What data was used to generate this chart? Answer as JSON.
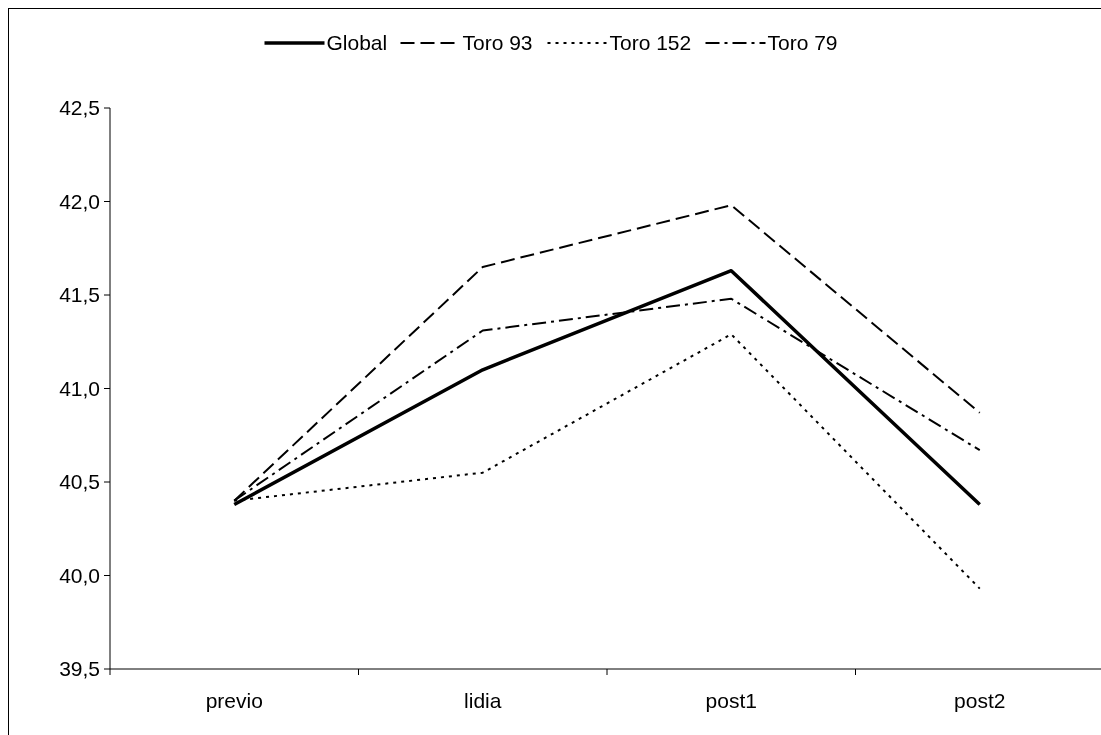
{
  "chart_data": {
    "type": "line",
    "categories": [
      "previo",
      "lidia",
      "post1",
      "post2"
    ],
    "series": [
      {
        "name": "Global",
        "color": "#000000",
        "line_style": "solid",
        "values": [
          40.38,
          41.1,
          41.63,
          40.38
        ]
      },
      {
        "name": "Toro 93",
        "color": "#000000",
        "line_style": "dashed",
        "values": [
          40.4,
          41.65,
          41.98,
          40.87
        ]
      },
      {
        "name": "Toro 152",
        "color": "#000000",
        "line_style": "dotted",
        "values": [
          40.4,
          40.55,
          41.29,
          39.93
        ]
      },
      {
        "name": "Toro 79",
        "color": "#000000",
        "line_style": "dashdot",
        "values": [
          40.4,
          41.31,
          41.48,
          40.67
        ]
      }
    ],
    "ylim": [
      39.5,
      42.5
    ],
    "yticks": [
      {
        "value": 39.5,
        "label": "39,5"
      },
      {
        "value": 40,
        "label": "40,0"
      },
      {
        "value": 40.5,
        "label": "40,5"
      },
      {
        "value": 41,
        "label": "41,0"
      },
      {
        "value": 41.5,
        "label": "41,5"
      },
      {
        "value": 42,
        "label": "42,0"
      },
      {
        "value": 42.5,
        "label": "42,5"
      }
    ],
    "legend": "top",
    "grid": false,
    "marker": "none"
  }
}
